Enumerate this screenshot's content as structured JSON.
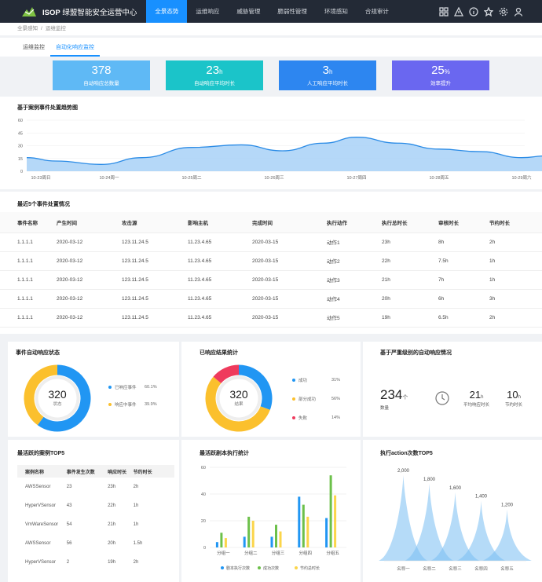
{
  "app": {
    "brand_bold": "ISOP",
    "brand_rest": " 绿盟智能安全运营中心"
  },
  "nav": [
    {
      "label": "全景态势",
      "active": true
    },
    {
      "label": "运维响应",
      "active": false
    },
    {
      "label": "威胁管理",
      "active": false
    },
    {
      "label": "脆弱性管理",
      "active": false
    },
    {
      "label": "环境感知",
      "active": false
    },
    {
      "label": "合规审计",
      "active": false
    }
  ],
  "topbar_icons": [
    "grid-icon",
    "warning-icon",
    "info-icon",
    "star-icon",
    "gear-icon",
    "user-icon"
  ],
  "breadcrumb": [
    "全景感知",
    "运维监控"
  ],
  "tabs": [
    {
      "label": "运维监控",
      "active": false
    },
    {
      "label": "自动化响应监控",
      "active": true
    }
  ],
  "kpis": [
    {
      "value": "378",
      "unit": "",
      "label": "自动响应总数量",
      "color": "#5fb9f5"
    },
    {
      "value": "23",
      "unit": "h",
      "label": "自动响应平均时长",
      "color": "#1bc4c9"
    },
    {
      "value": "3",
      "unit": "h",
      "label": "人工响应平均时长",
      "color": "#2d86f0"
    },
    {
      "value": "25",
      "unit": "%",
      "label": "效率提升",
      "color": "#6a67f0"
    }
  ],
  "trend": {
    "title": "基于案例事件处置趋势图",
    "chart_data": {
      "type": "area",
      "x": [
        "10-23周日",
        "10-24周一",
        "10-25周二",
        "10-26周三",
        "10-27周四",
        "10-28周五",
        "10-29周六"
      ],
      "y_ticks": [
        0,
        15,
        30,
        45,
        60
      ],
      "ylim": [
        0,
        60
      ],
      "curve": [
        [
          0,
          16
        ],
        [
          0.35,
          12
        ],
        [
          0.9,
          8
        ],
        [
          1.4,
          16
        ],
        [
          2,
          28
        ],
        [
          2.6,
          31
        ],
        [
          3.1,
          24
        ],
        [
          3.6,
          33
        ],
        [
          4,
          40
        ],
        [
          4.5,
          33
        ],
        [
          5,
          26
        ],
        [
          5.5,
          23
        ],
        [
          6,
          16
        ],
        [
          6.3,
          18
        ],
        [
          6.5,
          25
        ]
      ]
    }
  },
  "events": {
    "title": "最近5个事件处置情况",
    "columns": [
      "事件名称",
      "产生时间",
      "攻击源",
      "影响主机",
      "完成时间",
      "执行动作",
      "执行总时长",
      "审核时长",
      "节约时长"
    ],
    "rows": [
      [
        "1.1.1.1",
        "2020-03-12",
        "123.11.24.5",
        "11.23.4.65",
        "2020-03-15",
        "动作1",
        "23h",
        "8h",
        "2h"
      ],
      [
        "1.1.1.1",
        "2020-03-12",
        "123.11.24.5",
        "11.23.4.65",
        "2020-03-15",
        "动作2",
        "22h",
        "7.5h",
        "1h"
      ],
      [
        "1.1.1.1",
        "2020-03-12",
        "123.11.24.5",
        "11.23.4.65",
        "2020-03-15",
        "动作3",
        "21h",
        "7h",
        "1h"
      ],
      [
        "1.1.1.1",
        "2020-03-12",
        "123.11.24.5",
        "11.23.4.65",
        "2020-03-15",
        "动作4",
        "20h",
        "6h",
        "3h"
      ],
      [
        "1.1.1.1",
        "2020-03-12",
        "123.11.24.5",
        "11.23.4.65",
        "2020-03-15",
        "动作5",
        "19h",
        "6.5h",
        "2h"
      ]
    ]
  },
  "status": {
    "title": "事件自动响应状态",
    "center_value": "320",
    "center_label": "状态",
    "chart_data": {
      "type": "pie",
      "slices": [
        {
          "name": "已响应事件",
          "value": 60.1,
          "display": "60.1%",
          "color": "#2196f3"
        },
        {
          "name": "响应中事件",
          "value": 39.9,
          "display": "39.9%",
          "color": "#fbc02d"
        }
      ]
    }
  },
  "results": {
    "title": "已响应结果统计",
    "center_value": "320",
    "center_label": "结果",
    "chart_data": {
      "type": "pie",
      "slices": [
        {
          "name": "成功",
          "value": 31,
          "display": "31%",
          "color": "#2196f3"
        },
        {
          "name": "部分成功",
          "value": 56,
          "display": "56%",
          "color": "#fbc02d"
        },
        {
          "name": "失败",
          "value": 14,
          "display": "14%",
          "color": "#ef3b5d"
        }
      ]
    }
  },
  "severity": {
    "title": "基于严重级别的自动响应情况",
    "count": "234",
    "count_unit": "个",
    "count_label": "数量",
    "avg_value": "21",
    "avg_unit": "h",
    "avg_label": "平均响应时长",
    "save_value": "10",
    "save_unit": "h",
    "save_label": "节约时长"
  },
  "top5": {
    "title": "最活跃的案例TOP5",
    "columns": [
      "案例名称",
      "事件发生次数",
      "响应时长",
      "节约时长"
    ],
    "rows": [
      [
        "AWSSensor",
        "23",
        "23h",
        "2h"
      ],
      [
        "HyperVSensor",
        "43",
        "22h",
        "1h"
      ],
      [
        "VmWareSensor",
        "54",
        "21h",
        "1h"
      ],
      [
        "AWSSensor",
        "56",
        "20h",
        "1.5h"
      ],
      [
        "HyperVSensor",
        "2",
        "19h",
        "2h"
      ]
    ]
  },
  "scripts": {
    "title": "最活跃剧本执行统计",
    "chart_data": {
      "type": "bar",
      "categories": [
        "分组一",
        "分组二",
        "分组三",
        "分组四",
        "分组五"
      ],
      "ylim": [
        0,
        60
      ],
      "y_ticks": [
        0,
        20,
        40,
        60
      ],
      "series": [
        {
          "name": "剧本执行次数",
          "color": "#2196f3",
          "values": [
            4,
            8,
            8,
            38,
            22
          ]
        },
        {
          "name": "成功次数",
          "color": "#6cc04a",
          "values": [
            11,
            23,
            17,
            32,
            54
          ]
        },
        {
          "name": "节约总时长",
          "color": "#fbd54a",
          "values": [
            7,
            20,
            12,
            23,
            39
          ]
        }
      ]
    }
  },
  "actions": {
    "title": "执行action次数TOP5",
    "chart_data": {
      "type": "bar",
      "categories": [
        "名称一",
        "名称二",
        "名称三",
        "名称四",
        "名称五"
      ],
      "values": [
        2000,
        1800,
        1600,
        1400,
        1200
      ],
      "value_labels": [
        "2,000",
        "1,800",
        "1,600",
        "1,400",
        "1,200"
      ],
      "ylim": [
        0,
        2000
      ]
    }
  }
}
